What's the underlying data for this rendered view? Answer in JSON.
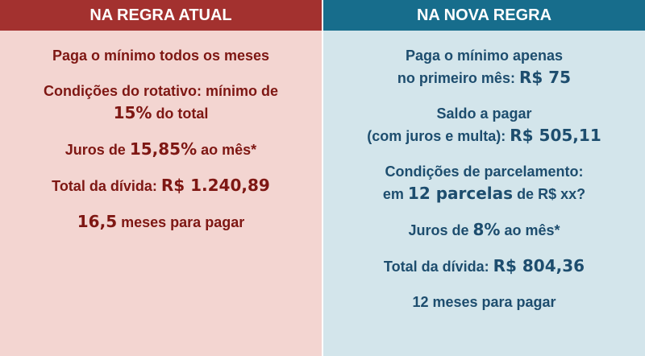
{
  "columns": [
    {
      "header": "NA REGRA ATUAL",
      "header_color": "#a3312f",
      "body_color": "#f3d5d1",
      "text_color": "#7e1713",
      "items": [
        {
          "lines": [
            [
              {
                "text": "Paga o mínimo todos os meses"
              }
            ]
          ]
        },
        {
          "lines": [
            [
              {
                "text": "Condições do rotativo: mínimo de"
              }
            ],
            [
              {
                "text": "15%",
                "emphasis": true
              },
              {
                "text": " do total"
              }
            ]
          ]
        },
        {
          "lines": [
            [
              {
                "text": "Juros de "
              },
              {
                "text": "15,85%",
                "emphasis": true
              },
              {
                "text": " ao mês*"
              }
            ]
          ]
        },
        {
          "lines": [
            [
              {
                "text": "Total da dívida: "
              },
              {
                "text": "R$ 1.240,89",
                "emphasis": true
              }
            ]
          ]
        },
        {
          "lines": [
            [
              {
                "text": "16,5",
                "emphasis": true
              },
              {
                "text": " meses para pagar"
              }
            ]
          ]
        }
      ]
    },
    {
      "header": "NA NOVA REGRA",
      "header_color": "#176d8c",
      "body_color": "#d3e5eb",
      "text_color": "#1d4d6e",
      "items": [
        {
          "lines": [
            [
              {
                "text": "Paga o mínimo apenas"
              }
            ],
            [
              {
                "text": "no primeiro mês: "
              },
              {
                "text": "R$ 75",
                "emphasis": true
              }
            ]
          ]
        },
        {
          "lines": [
            [
              {
                "text": "Saldo a pagar"
              }
            ],
            [
              {
                "text": "(com juros e multa): "
              },
              {
                "text": "R$ 505,11",
                "emphasis": true
              }
            ]
          ]
        },
        {
          "lines": [
            [
              {
                "text": "Condições de parcelamento:"
              }
            ],
            [
              {
                "text": "em "
              },
              {
                "text": "12 parcelas",
                "emphasis": true
              },
              {
                "text": " de R$ xx?"
              }
            ]
          ]
        },
        {
          "lines": [
            [
              {
                "text": "Juros de "
              },
              {
                "text": "8%",
                "emphasis": true
              },
              {
                "text": " ao mês*"
              }
            ]
          ]
        },
        {
          "lines": [
            [
              {
                "text": "Total da dívida: "
              },
              {
                "text": "R$ 804,36",
                "emphasis": true
              }
            ]
          ]
        },
        {
          "lines": [
            [
              {
                "text": "12 meses para pagar"
              }
            ]
          ]
        }
      ]
    }
  ]
}
